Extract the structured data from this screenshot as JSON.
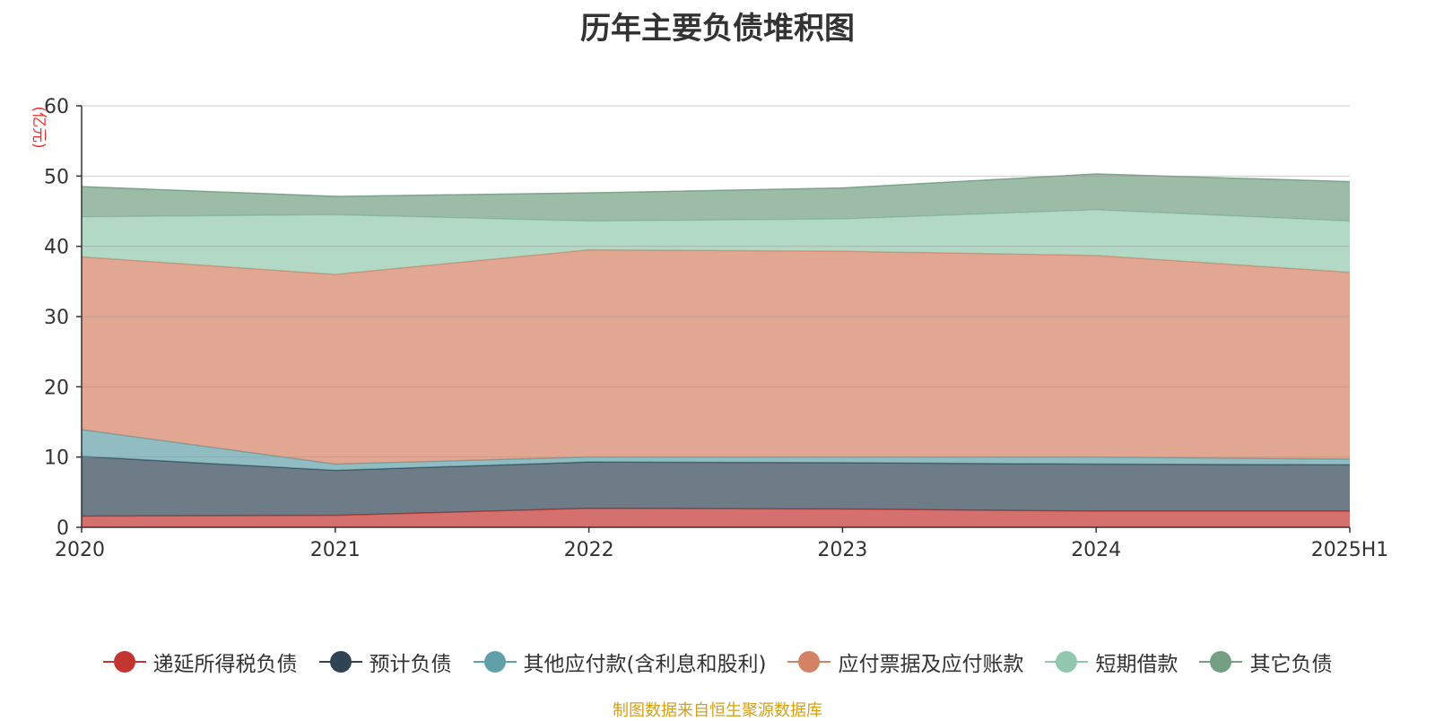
{
  "title": "历年主要负债堆积图",
  "source": "制图数据来自恒生聚源数据库",
  "chart_data": {
    "type": "area",
    "stacked": true,
    "title": "历年主要负债堆积图",
    "ylabel": "(亿元)",
    "ylim": [
      0,
      60
    ],
    "yticks": [
      0,
      10,
      20,
      30,
      40,
      50,
      60
    ],
    "grid": true,
    "legend_position": "bottom",
    "categories": [
      "2020",
      "2021",
      "2022",
      "2023",
      "2024",
      "2025H1"
    ],
    "series": [
      {
        "name": "递延所得税负债",
        "color": "#c23531",
        "values": [
          1.6,
          1.7,
          2.7,
          2.6,
          2.3,
          2.3
        ]
      },
      {
        "name": "预计负债",
        "color": "#2f4554",
        "values": [
          8.5,
          6.4,
          6.6,
          6.6,
          6.7,
          6.6
        ]
      },
      {
        "name": "其他应付款(含利息和股利)",
        "color": "#61a0a8",
        "values": [
          3.8,
          0.9,
          0.7,
          0.8,
          1.0,
          0.8
        ]
      },
      {
        "name": "应付票据及应付账款",
        "color": "#d48265",
        "values": [
          24.6,
          27.0,
          29.5,
          29.3,
          28.7,
          26.6
        ]
      },
      {
        "name": "短期借款",
        "color": "#91c7ae",
        "values": [
          5.7,
          8.5,
          4.1,
          4.6,
          6.5,
          7.3
        ]
      },
      {
        "name": "其它负债",
        "color": "#749f83",
        "values": [
          4.3,
          2.6,
          4.0,
          4.4,
          5.1,
          5.6
        ]
      }
    ]
  }
}
